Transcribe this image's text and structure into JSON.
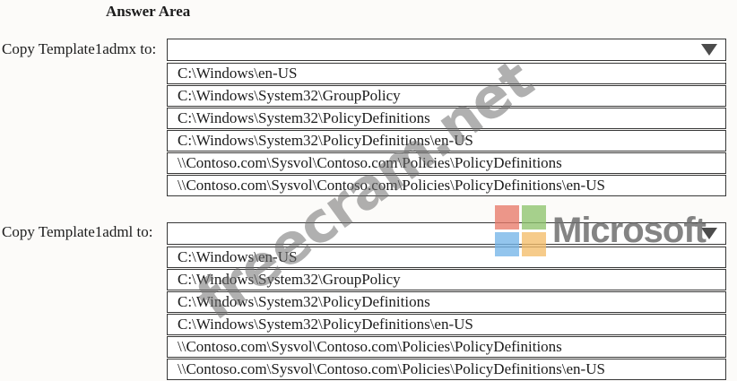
{
  "title": "Answer Area",
  "questions": [
    {
      "label": "Copy Template1admx to:",
      "selected_value": "",
      "options": [
        "C:\\Windows\\en-US",
        "C:\\Windows\\System32\\GroupPolicy",
        "C:\\Windows\\System32\\PolicyDefinitions",
        "C:\\Windows\\System32\\PolicyDefinitions\\en-US",
        "\\\\Contoso.com\\Sysvol\\Contoso.com\\Policies\\PolicyDefinitions",
        "\\\\Contoso.com\\Sysvol\\Contoso.com\\Policies\\PolicyDefinitions\\en-US"
      ]
    },
    {
      "label": "Copy Template1adml to:",
      "selected_value": "",
      "options": [
        "C:\\Windows\\en-US",
        "C:\\Windows\\System32\\GroupPolicy",
        "C:\\Windows\\System32\\PolicyDefinitions",
        "C:\\Windows\\System32\\PolicyDefinitions\\en-US",
        "\\\\Contoso.com\\Sysvol\\Contoso.com\\Policies\\PolicyDefinitions",
        "\\\\Contoso.com\\Sysvol\\Contoso.com\\Policies\\PolicyDefinitions\\en-US"
      ]
    }
  ],
  "watermarks": {
    "diagonal_text": "freecram.net",
    "microsoft": {
      "text": "Microsoft",
      "text_color": "#6f6f6f",
      "square_colors": {
        "top_left": "#e87a6a",
        "top_right": "#8fc46e",
        "bottom_left": "#75b5e8",
        "bottom_right": "#f4bd6a"
      }
    }
  }
}
